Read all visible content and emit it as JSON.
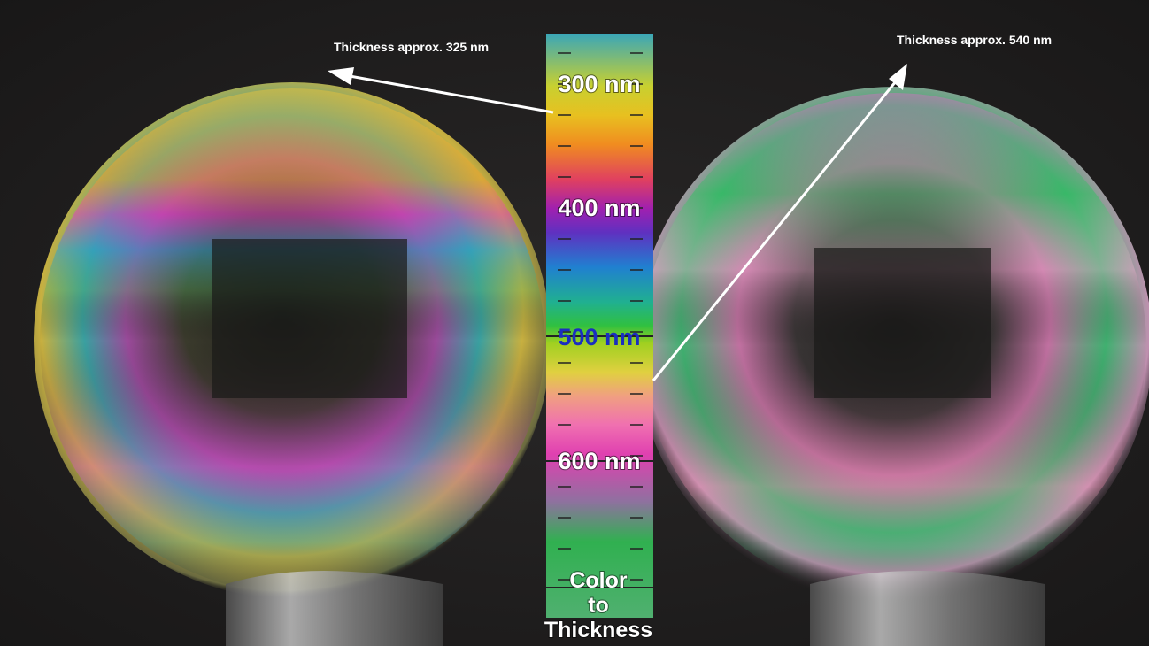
{
  "annotations": [
    {
      "label": "Thickness approx. 325 nm"
    },
    {
      "label": "Thickness approx. 540 nm"
    }
  ],
  "scale": {
    "tick_labels": [
      "300 nm",
      "400 nm",
      "500 nm",
      "600 nm"
    ],
    "caption": [
      "Color",
      "to",
      "Thickness"
    ]
  }
}
